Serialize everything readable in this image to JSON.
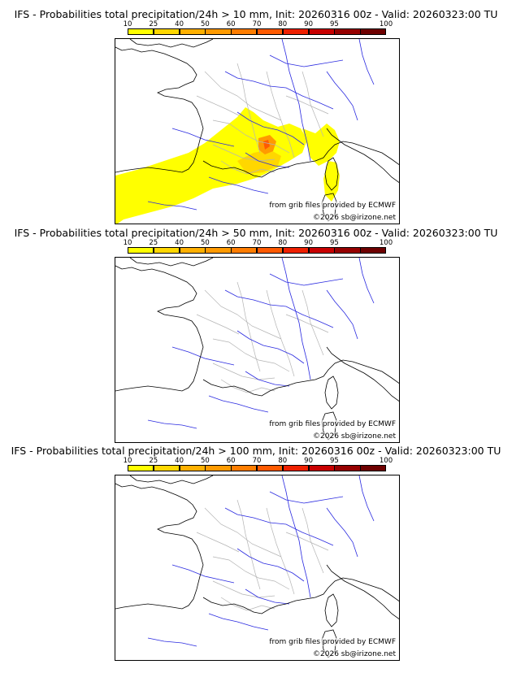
{
  "colorbar": {
    "ticks": [
      "10",
      "25",
      "40",
      "50",
      "60",
      "70",
      "80",
      "90",
      "95",
      "100"
    ],
    "colors": [
      "#ffff00",
      "#ffd700",
      "#ffb000",
      "#ff9a00",
      "#ff7d00",
      "#ff5a00",
      "#ee2000",
      "#c80000",
      "#960000",
      "#6e0000"
    ]
  },
  "credits": {
    "source": "from grib files provided by ECMWF",
    "copyright": "©2026 sb@irizone.net"
  },
  "panels": [
    {
      "title": "IFS - Probabilities total precipitation/24h > 10 mm, Init: 20260316 00z - Valid: 20260323:00 TU",
      "has_precip": true
    },
    {
      "title": "IFS - Probabilities total precipitation/24h > 50 mm, Init: 20260316 00z - Valid: 20260323:00 TU",
      "has_precip": false
    },
    {
      "title": "IFS - Probabilities total precipitation/24h > 100 mm, Init: 20260316 00z - Valid: 20260323:00 TU",
      "has_precip": false
    }
  ],
  "map_legend_items": {
    "coastline_color": "#000000",
    "river_color": "#2a2ae0",
    "admin_border_color": "#b4b4b4"
  }
}
